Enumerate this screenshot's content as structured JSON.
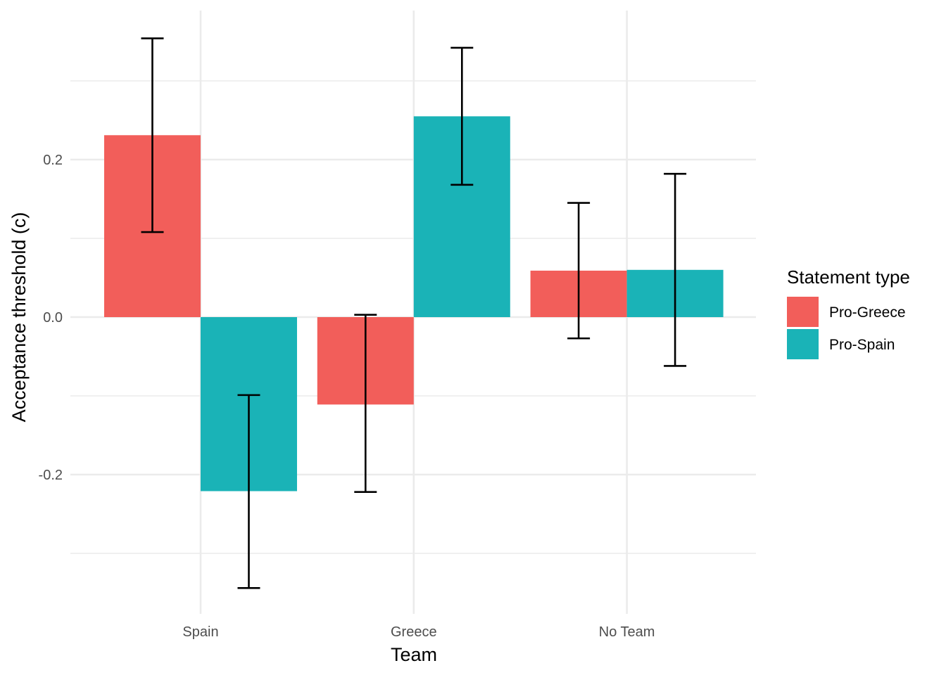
{
  "chart_data": {
    "type": "bar",
    "xlabel": "Team",
    "ylabel": "Acceptance threshold (c)",
    "categories": [
      "Spain",
      "Greece",
      "No Team"
    ],
    "ylim": [
      -0.375,
      0.39
    ],
    "yticks": [
      -0.2,
      0.0,
      0.2
    ],
    "ytick_labels": [
      "-0.2",
      "0.0",
      "0.2"
    ],
    "grid": true,
    "legend": {
      "title": "Statement type",
      "position": "right"
    },
    "series": [
      {
        "name": "Pro-Greece",
        "color": "#F25E5A",
        "values": [
          0.231,
          -0.111,
          0.059
        ],
        "error_low": [
          0.108,
          -0.222,
          -0.027
        ],
        "error_high": [
          0.354,
          0.003,
          0.145
        ]
      },
      {
        "name": "Pro-Spain",
        "color": "#1AB3B7",
        "values": [
          -0.221,
          0.255,
          0.06
        ],
        "error_low": [
          -0.344,
          0.168,
          -0.062
        ],
        "error_high": [
          -0.099,
          0.342,
          0.182
        ]
      }
    ]
  }
}
